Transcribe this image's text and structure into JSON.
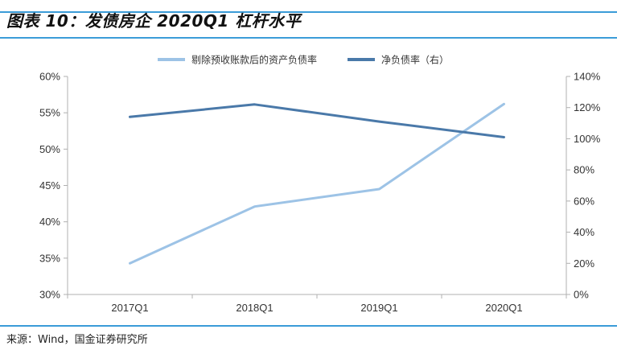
{
  "title": "图表 10：发债房企 2020Q1 杠杆水平",
  "source": "来源：Wind，国金证券研究所",
  "colors": {
    "accent_rule": "#3b9cd8",
    "series_light": "#9dc3e6",
    "series_dark": "#4a79a9"
  },
  "chart_data": {
    "type": "line",
    "categories": [
      "2017Q1",
      "2018Q1",
      "2019Q1",
      "2020Q1"
    ],
    "y_left": {
      "range": [
        30,
        60
      ],
      "ticks": [
        30,
        35,
        40,
        45,
        50,
        55,
        60
      ],
      "tick_labels": [
        "30%",
        "35%",
        "40%",
        "45%",
        "50%",
        "55%",
        "60%"
      ]
    },
    "y_right": {
      "range": [
        0,
        140
      ],
      "ticks": [
        0,
        20,
        40,
        60,
        80,
        100,
        120,
        140
      ],
      "tick_labels": [
        "0%",
        "20%",
        "40%",
        "60%",
        "80%",
        "100%",
        "120%",
        "140%"
      ]
    },
    "series": [
      {
        "name": "剔除预收账款后的资产负债率",
        "axis": "left",
        "color": "#9dc3e6",
        "values": [
          34.3,
          42.1,
          44.5,
          56.2
        ]
      },
      {
        "name": "净负债率（右）",
        "axis": "right",
        "color": "#4a79a9",
        "values": [
          114,
          122,
          111,
          101
        ]
      }
    ],
    "legend_position": "top-center",
    "grid": false
  }
}
